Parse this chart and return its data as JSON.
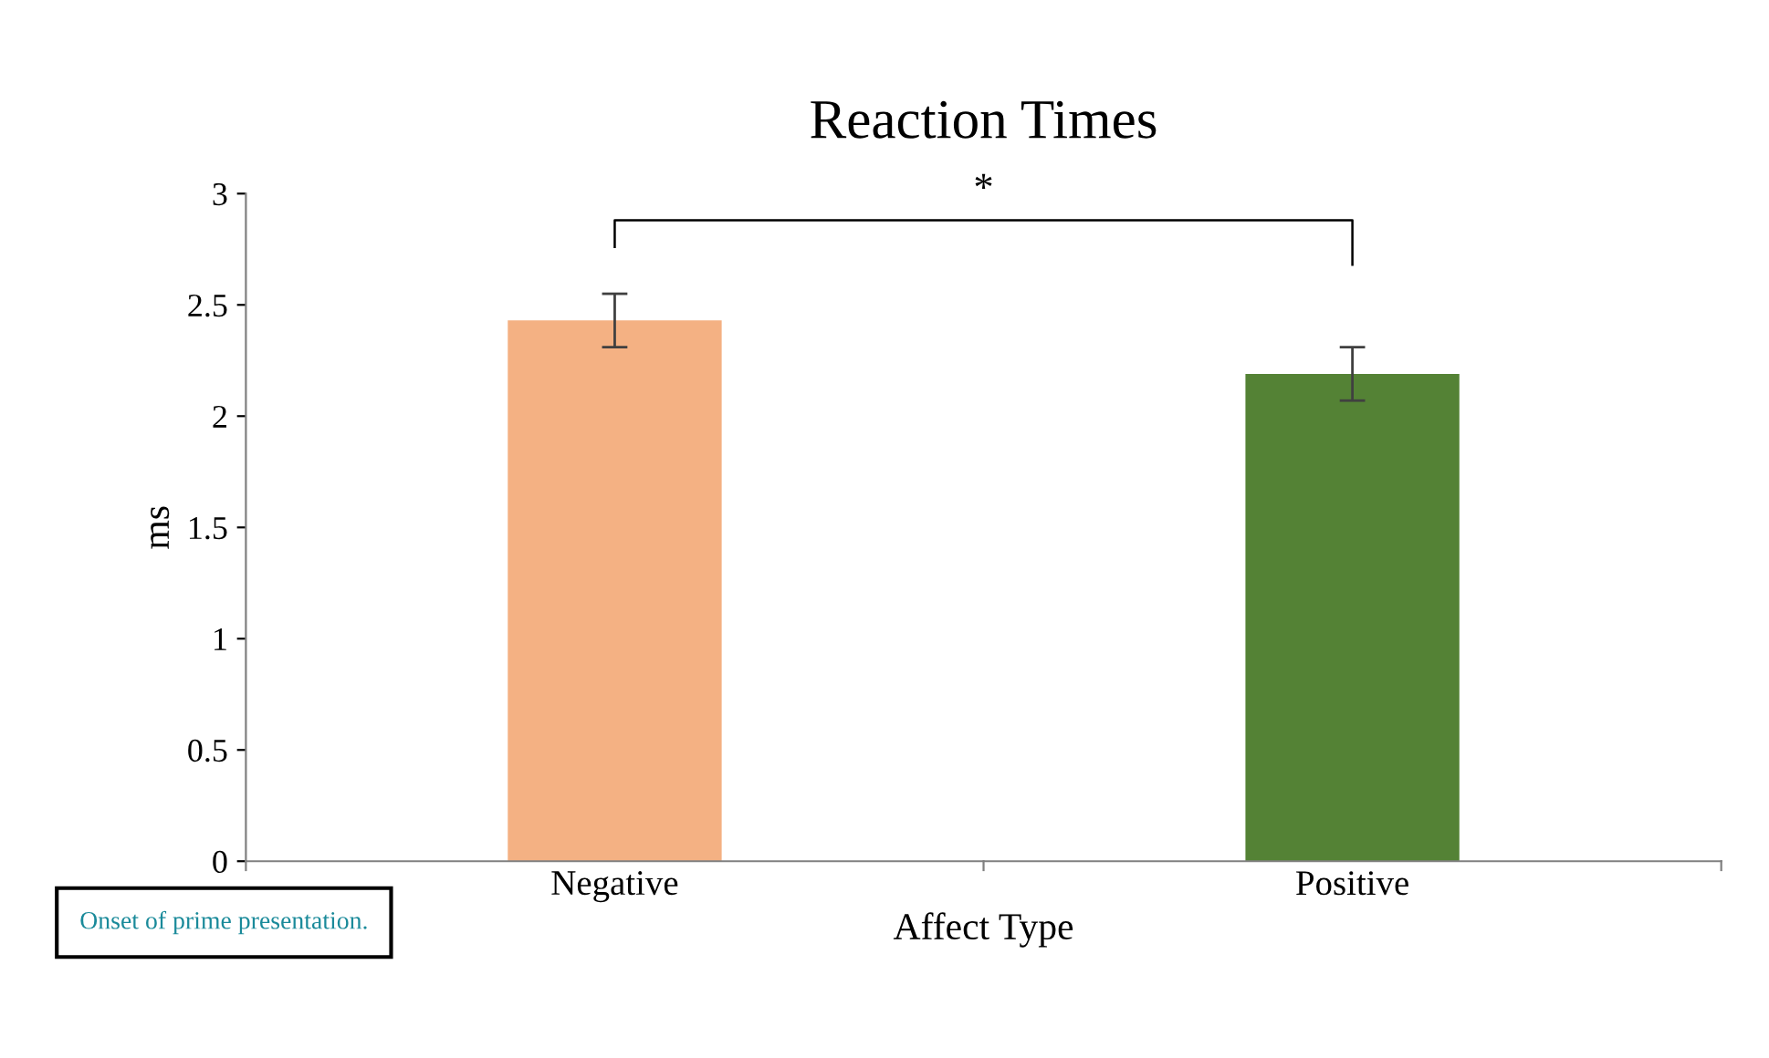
{
  "chart_data": {
    "type": "bar",
    "title": "Reaction Times",
    "xlabel": "Affect Type",
    "ylabel": "ms",
    "categories": [
      "Negative",
      "Positive"
    ],
    "values": [
      2.43,
      2.19
    ],
    "colors": [
      "#f4b183",
      "#548235"
    ],
    "errors": [
      0.12,
      0.12
    ],
    "ylim": [
      0,
      3
    ],
    "yticks": [
      0,
      0.5,
      1,
      1.5,
      2,
      2.5,
      3
    ],
    "grid": false,
    "annotations": [
      "*",
      "Onset of prime presentation."
    ]
  }
}
